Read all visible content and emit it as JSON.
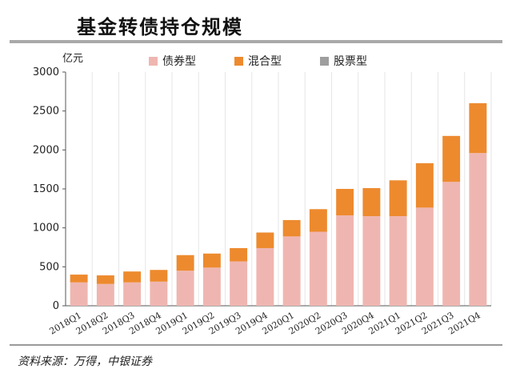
{
  "title": "基金转债持仓规模",
  "source": "资料来源：万得，中银证券",
  "colors": {
    "bond": "#efb6b1",
    "mixed": "#ed8a2e",
    "stock": "#9e9e9e"
  },
  "chart_data": {
    "type": "bar",
    "stacked": true,
    "ylabel": "亿元",
    "ylim": [
      0,
      3000
    ],
    "yticks": [
      0,
      500,
      1000,
      1500,
      2000,
      2500,
      3000
    ],
    "grid": true,
    "legend_position": "top",
    "categories": [
      "2018Q1",
      "2018Q2",
      "2018Q3",
      "2018Q4",
      "2019Q1",
      "2019Q2",
      "2019Q3",
      "2019Q4",
      "2020Q1",
      "2020Q2",
      "2020Q3",
      "2020Q4",
      "2021Q1",
      "2021Q2",
      "2021Q3",
      "2021Q4"
    ],
    "series": [
      {
        "name": "债券型",
        "color": "#efb6b1",
        "values": [
          300,
          280,
          300,
          310,
          450,
          490,
          570,
          740,
          890,
          950,
          1160,
          1150,
          1150,
          1260,
          1590,
          1960
        ]
      },
      {
        "name": "混合型",
        "color": "#ed8a2e",
        "values": [
          100,
          110,
          140,
          150,
          200,
          180,
          170,
          200,
          210,
          290,
          340,
          360,
          460,
          570,
          590,
          640
        ]
      },
      {
        "name": "股票型",
        "color": "#9e9e9e",
        "values": [
          0,
          0,
          0,
          0,
          0,
          0,
          0,
          0,
          0,
          0,
          0,
          0,
          0,
          0,
          0,
          0
        ]
      }
    ]
  }
}
